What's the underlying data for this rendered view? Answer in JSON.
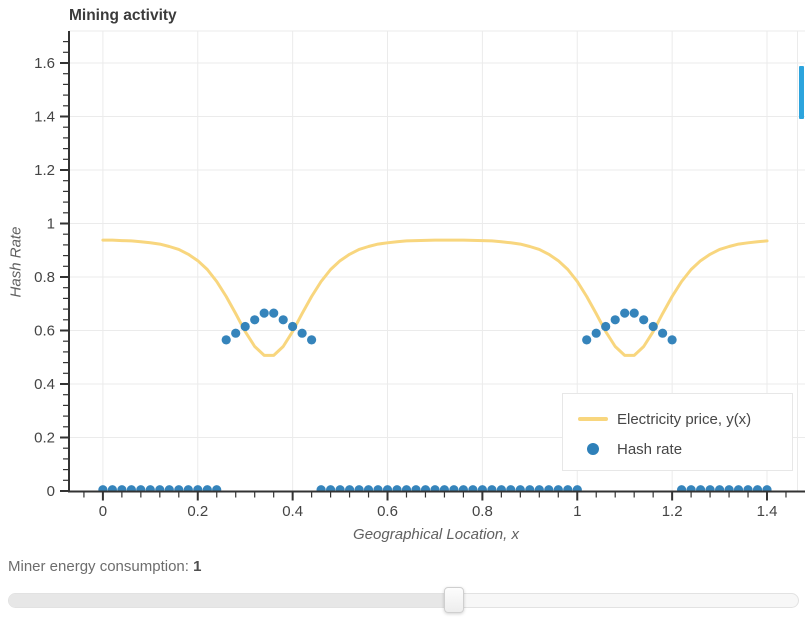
{
  "chart": {
    "title": "Mining activity",
    "x_axis": {
      "label": "Geographical Location, x",
      "tick_labels": [
        "0",
        "0.2",
        "0.4",
        "0.6",
        "0.8",
        "1",
        "1.2",
        "1.4"
      ],
      "tick_values": [
        0,
        0.2,
        0.4,
        0.6,
        0.8,
        1,
        1.2,
        1.4
      ],
      "minor_step": 0.04,
      "range": [
        -0.071,
        1.48
      ]
    },
    "y_axis": {
      "label": "Hash Rate",
      "tick_labels": [
        "0",
        "0.2",
        "0.4",
        "0.6",
        "0.8",
        "1",
        "1.2",
        "1.4",
        "1.6"
      ],
      "tick_values": [
        0,
        0.2,
        0.4,
        0.6,
        0.8,
        1,
        1.2,
        1.4,
        1.6
      ],
      "minor_step": 0.04,
      "range": [
        0,
        1.72
      ]
    },
    "legend": {
      "position": "bottom-right",
      "items": [
        {
          "label": "Electricity price, y(x)",
          "marker": "line",
          "color": "#f8d67e"
        },
        {
          "label": "Hash rate",
          "marker": "circle",
          "color": "#2e80b9"
        }
      ]
    },
    "colors": {
      "line": "#f8d67e",
      "scatter": "#2e80b9",
      "grid": "#ebebeb",
      "frame": "#ebebeb",
      "axis": "#333333",
      "tick_label": "#444444",
      "title": "#3b3b3b",
      "axis_label": "#606060"
    }
  },
  "chart_data": {
    "type": "line+scatter",
    "title": "Mining activity",
    "xlabel": "Geographical Location, x",
    "ylabel": "Hash Rate",
    "xlim": [
      -0.071,
      1.48
    ],
    "ylim": [
      0,
      1.72
    ],
    "grid": true,
    "legend_position": "bottom-right",
    "x": [
      0,
      0.02,
      0.04,
      0.06,
      0.08,
      0.1,
      0.12,
      0.14,
      0.16,
      0.18,
      0.2,
      0.22,
      0.24,
      0.26,
      0.28,
      0.3,
      0.32,
      0.34,
      0.36,
      0.38,
      0.4,
      0.42,
      0.44,
      0.46,
      0.48,
      0.5,
      0.52,
      0.54,
      0.56,
      0.58,
      0.6,
      0.62,
      0.64,
      0.66,
      0.68,
      0.7,
      0.72,
      0.74,
      0.76,
      0.78,
      0.8,
      0.82,
      0.84,
      0.86,
      0.88,
      0.9,
      0.92,
      0.94,
      0.96,
      0.98,
      1,
      1.02,
      1.04,
      1.06,
      1.08,
      1.1,
      1.12,
      1.14,
      1.16,
      1.18,
      1.2,
      1.22,
      1.24,
      1.26,
      1.28,
      1.3,
      1.32,
      1.34,
      1.36,
      1.38,
      1.4
    ],
    "series": [
      {
        "name": "Electricity price, y(x)",
        "type": "line",
        "color": "#f8d67e",
        "values": [
          0.938,
          0.938,
          0.936,
          0.935,
          0.932,
          0.928,
          0.923,
          0.914,
          0.903,
          0.885,
          0.861,
          0.828,
          0.783,
          0.727,
          0.663,
          0.596,
          0.54,
          0.507,
          0.507,
          0.54,
          0.596,
          0.663,
          0.727,
          0.783,
          0.828,
          0.861,
          0.885,
          0.903,
          0.914,
          0.923,
          0.928,
          0.932,
          0.935,
          0.936,
          0.937,
          0.938,
          0.938,
          0.938,
          0.938,
          0.937,
          0.936,
          0.935,
          0.932,
          0.928,
          0.923,
          0.914,
          0.903,
          0.885,
          0.861,
          0.828,
          0.783,
          0.727,
          0.663,
          0.596,
          0.54,
          0.507,
          0.507,
          0.54,
          0.596,
          0.663,
          0.727,
          0.783,
          0.828,
          0.861,
          0.885,
          0.903,
          0.914,
          0.923,
          0.928,
          0.932,
          0.935
        ]
      },
      {
        "name": "Hash rate",
        "type": "scatter",
        "color": "#2e80b9",
        "values": [
          0.005,
          0.005,
          0.005,
          0.005,
          0.005,
          0.005,
          0.005,
          0.005,
          0.005,
          0.005,
          0.005,
          0.005,
          0.005,
          0.565,
          0.59,
          0.615,
          0.64,
          0.665,
          0.665,
          0.64,
          0.615,
          0.59,
          0.565,
          0.005,
          0.005,
          0.005,
          0.005,
          0.005,
          0.005,
          0.005,
          0.005,
          0.005,
          0.005,
          0.005,
          0.005,
          0.005,
          0.005,
          0.005,
          0.005,
          0.005,
          0.005,
          0.005,
          0.005,
          0.005,
          0.005,
          0.005,
          0.005,
          0.005,
          0.005,
          0.005,
          0.005,
          0.565,
          0.59,
          0.615,
          0.64,
          0.665,
          0.665,
          0.64,
          0.615,
          0.59,
          0.565,
          0.005,
          0.005,
          0.005,
          0.005,
          0.005,
          0.005,
          0.005,
          0.005,
          0.005,
          0.005
        ]
      }
    ]
  },
  "slider": {
    "label": "Miner energy consumption:",
    "value": "1",
    "percent": 56.6
  },
  "scrollbar": {
    "color": "#2ca4dd"
  }
}
